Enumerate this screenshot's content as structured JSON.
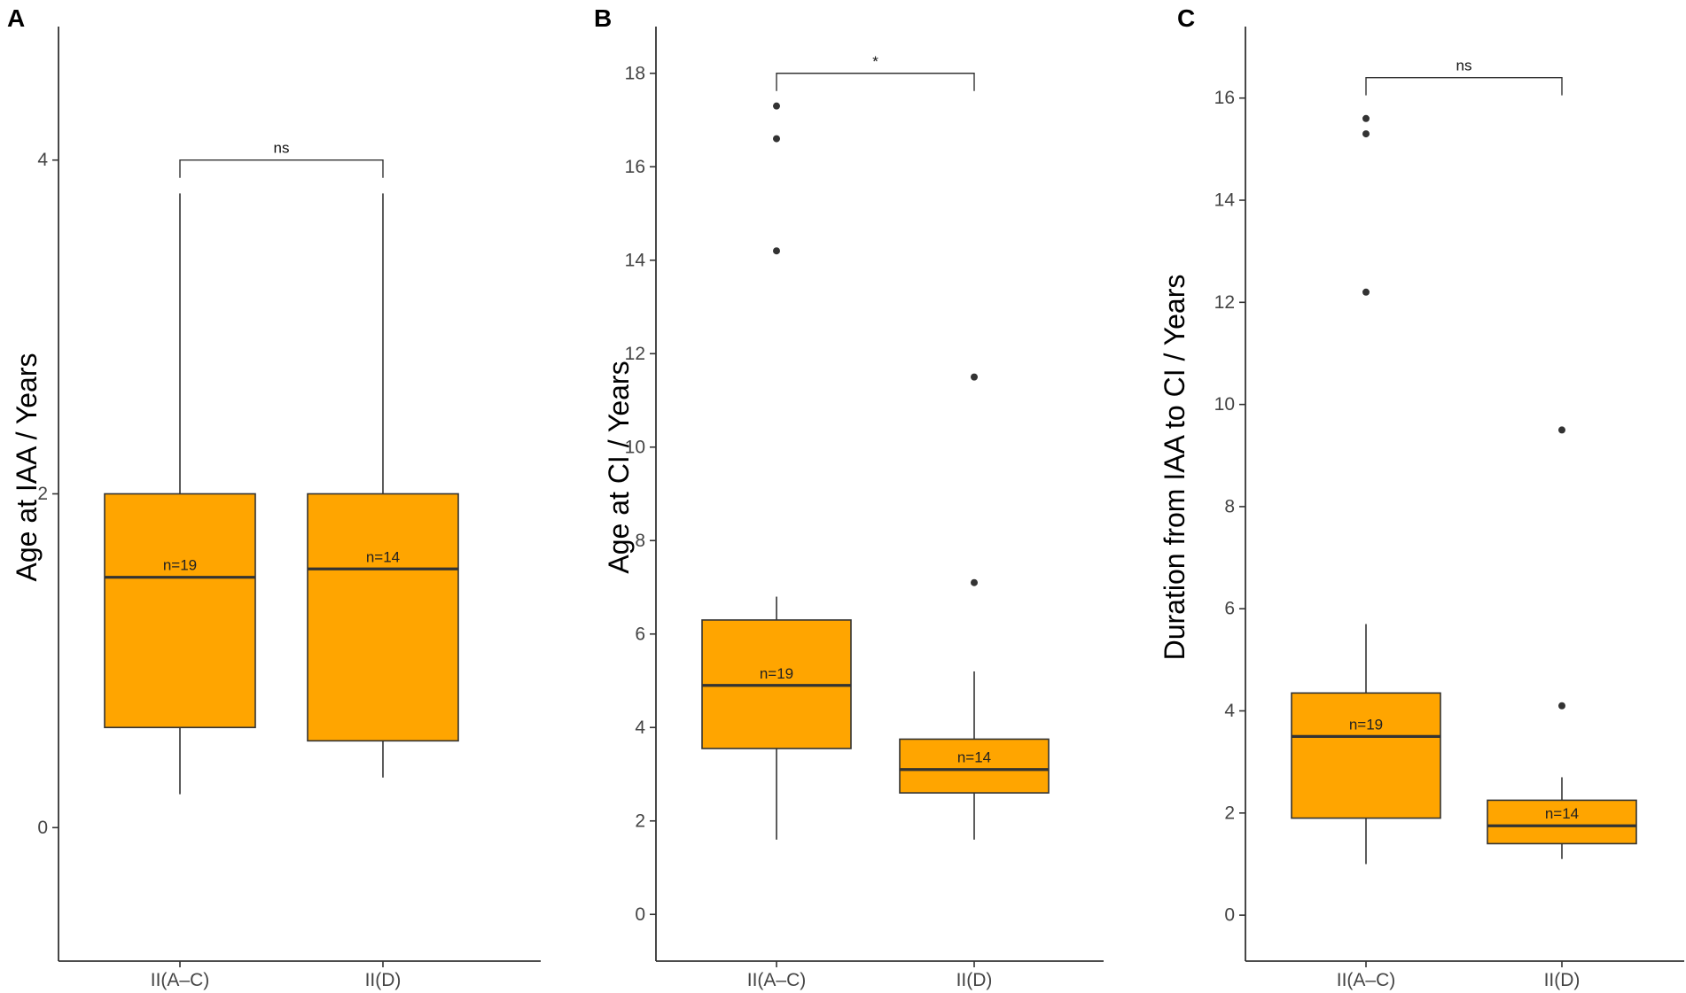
{
  "colors": {
    "box_fill": "#FFA500",
    "box_stroke": "#333333",
    "axis": "#333333",
    "outlier": "#333333"
  },
  "chart_data": [
    {
      "type": "boxplot",
      "panel": "A",
      "title": "",
      "ylabel": "Age at IAA / Years",
      "xlabel": "",
      "ylim": [
        -0.8,
        4.8
      ],
      "yticks": [
        0,
        2,
        4
      ],
      "categories": [
        "II(A–C)",
        "II(D)"
      ],
      "boxes": [
        {
          "category": "II(A–C)",
          "lower_whisker": 0.2,
          "q1": 0.6,
          "median": 1.5,
          "q3": 2.0,
          "upper_whisker": 3.8,
          "outliers": [],
          "n_label": "n=19"
        },
        {
          "category": "II(D)",
          "lower_whisker": 0.3,
          "q1": 0.52,
          "median": 1.55,
          "q3": 2.0,
          "upper_whisker": 3.8,
          "outliers": [],
          "n_label": "n=14"
        }
      ],
      "significance": {
        "label": "ns",
        "y": 4.0
      }
    },
    {
      "type": "boxplot",
      "panel": "B",
      "title": "",
      "ylabel": "Age at CI / Years",
      "xlabel": "",
      "ylim": [
        -1.0,
        19.0
      ],
      "yticks": [
        0,
        2,
        4,
        6,
        8,
        10,
        12,
        14,
        16,
        18
      ],
      "categories": [
        "II(A–C)",
        "II(D)"
      ],
      "boxes": [
        {
          "category": "II(A–C)",
          "lower_whisker": 1.6,
          "q1": 3.55,
          "median": 4.9,
          "q3": 6.3,
          "upper_whisker": 6.8,
          "outliers": [
            14.2,
            16.6,
            17.3
          ],
          "n_label": "n=19"
        },
        {
          "category": "II(D)",
          "lower_whisker": 1.6,
          "q1": 2.6,
          "median": 3.1,
          "q3": 3.75,
          "upper_whisker": 5.2,
          "outliers": [
            7.1,
            11.5
          ],
          "n_label": "n=14"
        }
      ],
      "significance": {
        "label": "*",
        "y": 18.0
      }
    },
    {
      "type": "boxplot",
      "panel": "C",
      "title": "",
      "ylabel": "Duration from IAA to CI / Years",
      "xlabel": "",
      "ylim": [
        -0.9,
        17.4
      ],
      "yticks": [
        0,
        2,
        4,
        6,
        8,
        10,
        12,
        14,
        16
      ],
      "categories": [
        "II(A–C)",
        "II(D)"
      ],
      "boxes": [
        {
          "category": "II(A–C)",
          "lower_whisker": 1.0,
          "q1": 1.9,
          "median": 3.5,
          "q3": 4.35,
          "upper_whisker": 5.7,
          "outliers": [
            12.2,
            15.3,
            15.6
          ],
          "n_label": "n=19"
        },
        {
          "category": "II(D)",
          "lower_whisker": 1.1,
          "q1": 1.4,
          "median": 1.75,
          "q3": 2.25,
          "upper_whisker": 2.7,
          "outliers": [
            4.1,
            9.5
          ],
          "n_label": "n=14"
        }
      ],
      "significance": {
        "label": "ns",
        "y": 16.4
      }
    }
  ]
}
